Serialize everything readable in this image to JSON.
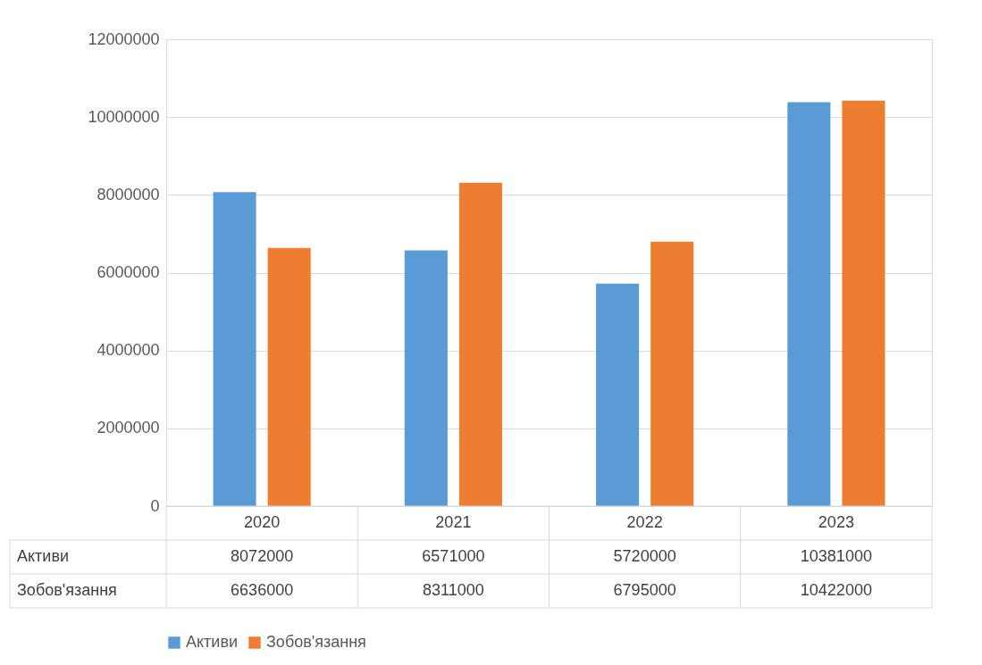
{
  "chart_data": {
    "type": "bar",
    "categories": [
      "2020",
      "2021",
      "2022",
      "2023"
    ],
    "series": [
      {
        "name": "Активи",
        "color": "#5b9bd5",
        "values": [
          8072000,
          6571000,
          5720000,
          10381000
        ]
      },
      {
        "name": "Зобов'язання",
        "color": "#ed7d31",
        "values": [
          6636000,
          8311000,
          6795000,
          10422000
        ]
      }
    ],
    "ylim": [
      0,
      12000000
    ],
    "yticks": [
      0,
      2000000,
      4000000,
      6000000,
      8000000,
      10000000,
      12000000
    ],
    "grid": "y",
    "legend": "bottom",
    "data_labels": true
  }
}
